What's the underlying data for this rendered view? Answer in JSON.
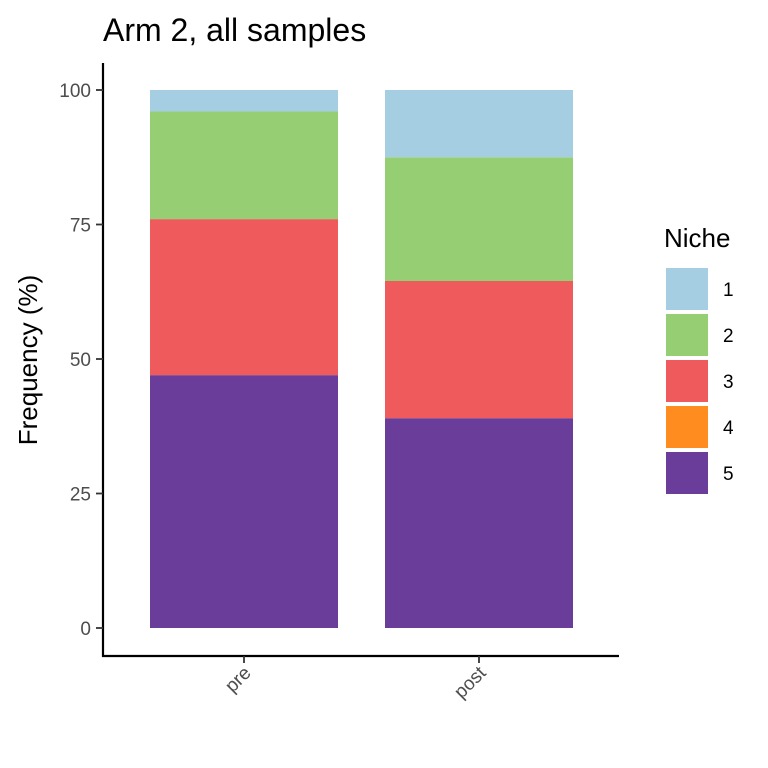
{
  "chart_data": {
    "type": "bar",
    "stacked": true,
    "title": "Arm 2, all samples",
    "xlabel": "",
    "ylabel": "Frequency (%)",
    "ylim": [
      0,
      100
    ],
    "yticks": [
      0,
      25,
      50,
      75,
      100
    ],
    "categories": [
      "pre",
      "post"
    ],
    "legend_title": "Niche",
    "legend_position": "right",
    "series": [
      {
        "name": "1",
        "color": "#A6CEE3",
        "values": [
          4.0,
          12.5
        ]
      },
      {
        "name": "2",
        "color": "#96CE73",
        "values": [
          20.0,
          23.0
        ]
      },
      {
        "name": "3",
        "color": "#EF5A5C",
        "values": [
          29.0,
          25.5
        ]
      },
      {
        "name": "4",
        "color": "#FF8C1F",
        "values": [
          0,
          0
        ]
      },
      {
        "name": "5",
        "color": "#6A3D9A",
        "values": [
          47.0,
          39.0
        ]
      }
    ],
    "stack_order_bottom_to_top": [
      "5",
      "4",
      "3",
      "2",
      "1"
    ],
    "grid": false
  }
}
